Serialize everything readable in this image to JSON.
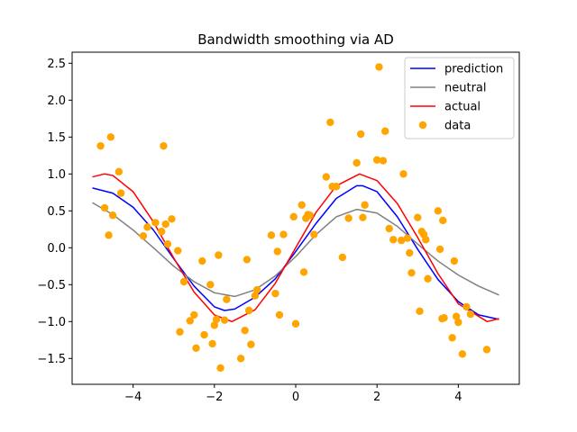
{
  "chart_data": {
    "type": "line",
    "title": "Bandwidth smoothing via AD",
    "xlabel": "",
    "ylabel": "",
    "xlim": [
      -5.5,
      5.5
    ],
    "ylim": [
      -1.85,
      2.65
    ],
    "xticks": [
      -4,
      -2,
      0,
      2,
      4
    ],
    "xtick_labels": [
      "−4",
      "−2",
      "0",
      "2",
      "4"
    ],
    "yticks": [
      -1.5,
      -1.0,
      -0.5,
      0.0,
      0.5,
      1.0,
      1.5,
      2.0,
      2.5
    ],
    "ytick_labels": [
      "−1.5",
      "−1.0",
      "−0.5",
      "0.0",
      "0.5",
      "1.0",
      "1.5",
      "2.0",
      "2.5"
    ],
    "grid": false,
    "legend_position": "top-right",
    "series": [
      {
        "name": "prediction",
        "kind": "line",
        "color": "#0000ff",
        "x": [
          -5.0,
          -4.5,
          -4.0,
          -3.5,
          -3.0,
          -2.5,
          -2.0,
          -1.75,
          -1.5,
          -1.0,
          -0.5,
          0.0,
          0.5,
          1.0,
          1.5,
          1.65,
          2.0,
          2.5,
          3.0,
          3.5,
          4.0,
          4.5,
          5.0
        ],
        "y": [
          0.81,
          0.74,
          0.55,
          0.24,
          -0.15,
          -0.52,
          -0.8,
          -0.85,
          -0.83,
          -0.67,
          -0.42,
          -0.05,
          0.33,
          0.67,
          0.84,
          0.84,
          0.76,
          0.42,
          -0.02,
          -0.43,
          -0.73,
          -0.91,
          -0.97
        ]
      },
      {
        "name": "neutral",
        "kind": "line",
        "color": "#808080",
        "x": [
          -5.0,
          -4.5,
          -4.0,
          -3.5,
          -3.0,
          -2.5,
          -2.0,
          -1.5,
          -1.0,
          -0.5,
          0.0,
          0.5,
          1.0,
          1.5,
          2.0,
          2.5,
          3.0,
          3.5,
          4.0,
          4.5,
          5.0
        ],
        "y": [
          0.61,
          0.45,
          0.24,
          0.0,
          -0.25,
          -0.46,
          -0.61,
          -0.66,
          -0.57,
          -0.38,
          -0.12,
          0.18,
          0.42,
          0.52,
          0.47,
          0.29,
          0.05,
          -0.18,
          -0.37,
          -0.52,
          -0.64
        ]
      },
      {
        "name": "actual",
        "kind": "line",
        "color": "#ff0000",
        "x": [
          -5.0,
          -4.71,
          -4.5,
          -4.0,
          -3.5,
          -3.0,
          -2.5,
          -2.0,
          -1.57,
          -1.0,
          -0.5,
          0.0,
          0.5,
          1.0,
          1.57,
          2.0,
          2.5,
          3.0,
          3.5,
          4.0,
          4.71,
          5.0
        ],
        "y": [
          0.96,
          1.0,
          0.98,
          0.76,
          0.35,
          -0.14,
          -0.6,
          -0.91,
          -1.0,
          -0.84,
          -0.48,
          0.0,
          0.48,
          0.84,
          1.0,
          0.91,
          0.6,
          0.14,
          -0.35,
          -0.76,
          -1.0,
          -0.96
        ]
      },
      {
        "name": "data",
        "kind": "scatter",
        "color": "#ffa500",
        "x": [
          -4.8,
          -4.7,
          -4.6,
          -4.55,
          -4.5,
          -4.35,
          -4.3,
          -3.75,
          -3.65,
          -3.45,
          -3.3,
          -3.25,
          -3.2,
          -3.15,
          -3.05,
          -2.9,
          -2.85,
          -2.75,
          -2.6,
          -2.5,
          -2.45,
          -2.3,
          -2.25,
          -2.1,
          -2.05,
          -2.0,
          -1.95,
          -1.9,
          -1.85,
          -1.75,
          -1.7,
          -1.35,
          -1.25,
          -1.2,
          -1.15,
          -1.1,
          -1.0,
          -0.95,
          -0.6,
          -0.5,
          -0.45,
          -0.4,
          -0.3,
          -0.05,
          0.0,
          0.15,
          0.2,
          0.25,
          0.3,
          0.35,
          0.45,
          0.75,
          0.85,
          0.9,
          1.0,
          1.15,
          1.3,
          1.5,
          1.6,
          1.65,
          1.7,
          2.0,
          2.05,
          2.15,
          2.2,
          2.3,
          2.4,
          2.6,
          2.65,
          2.75,
          2.8,
          2.85,
          3.0,
          3.05,
          3.1,
          3.15,
          3.2,
          3.25,
          3.5,
          3.55,
          3.6,
          3.62,
          3.65,
          3.85,
          3.9,
          3.95,
          4.0,
          4.1,
          4.2,
          4.3,
          4.7
        ],
        "y": [
          1.38,
          0.54,
          0.17,
          1.5,
          0.44,
          1.03,
          0.74,
          0.16,
          0.28,
          0.34,
          0.22,
          1.38,
          0.32,
          0.05,
          0.39,
          -0.04,
          -1.14,
          -0.46,
          -0.99,
          -0.91,
          -1.36,
          -0.18,
          -1.18,
          -0.5,
          -1.3,
          -1.05,
          -0.97,
          -0.1,
          -1.63,
          -0.98,
          -0.7,
          -1.5,
          -1.12,
          -0.16,
          -0.85,
          -1.31,
          -0.65,
          -0.57,
          0.17,
          -0.62,
          -0.05,
          -0.91,
          0.18,
          0.42,
          -1.03,
          0.58,
          -0.33,
          0.4,
          0.45,
          0.44,
          0.18,
          0.96,
          1.7,
          0.83,
          0.83,
          -0.13,
          0.4,
          1.15,
          1.54,
          0.41,
          0.58,
          1.19,
          2.45,
          1.18,
          1.58,
          0.26,
          0.11,
          0.1,
          1.0,
          0.13,
          -0.07,
          -0.34,
          0.41,
          -0.86,
          0.22,
          0.18,
          0.11,
          -0.42,
          0.5,
          -0.02,
          -0.96,
          0.37,
          -0.95,
          -1.22,
          -0.18,
          -0.93,
          -1.01,
          -1.44,
          -0.8,
          -0.9,
          -1.38
        ]
      }
    ]
  }
}
